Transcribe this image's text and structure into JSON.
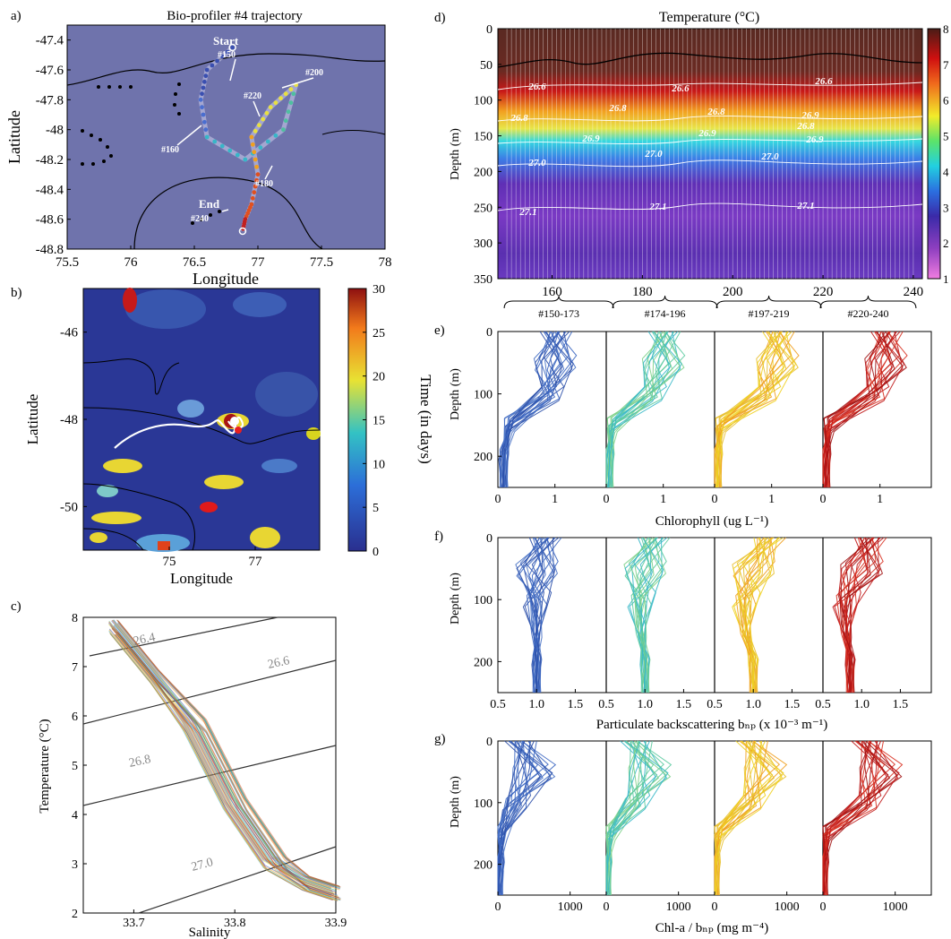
{
  "figure": {
    "panels": [
      {
        "id": "a",
        "letter": "a)",
        "title": "Bio-profiler #4 trajectory",
        "xlabel": "Longitude",
        "ylabel": "Latitude",
        "xticks": [
          "75.5",
          "76",
          "76.5",
          "77",
          "77.5",
          "78"
        ],
        "yticks": [
          "-47.4",
          "-47.6",
          "-47.8",
          "-48",
          "-48.2",
          "-48.4",
          "-48.6",
          "-48.8"
        ],
        "annotations": [
          "Start",
          "#150",
          "#200",
          "#220",
          "#160",
          "#180",
          "End",
          "#240"
        ]
      },
      {
        "id": "b",
        "letter": "b)",
        "xlabel": "Longitude",
        "ylabel": "Latitude",
        "xticks": [
          "75",
          "77"
        ],
        "yticks": [
          "-46",
          "-48",
          "-50"
        ],
        "colorbar_label": "Time (in days)",
        "colorbar_ticks": [
          "0",
          "5",
          "10",
          "15",
          "20",
          "25",
          "30"
        ]
      },
      {
        "id": "c",
        "letter": "c)",
        "xlabel": "Salinity",
        "ylabel": "Temperature (°C)",
        "xticks": [
          "33.7",
          "33.8",
          "33.9"
        ],
        "yticks": [
          "2",
          "3",
          "4",
          "5",
          "6",
          "7",
          "8"
        ],
        "isopycnal_labels": [
          "26.4",
          "26.6",
          "26.8",
          "27.0"
        ]
      },
      {
        "id": "d",
        "letter": "d)",
        "title": "Temperature (°C)",
        "ylabel": "Depth (m)",
        "xticks": [
          "160",
          "180",
          "200",
          "220",
          "240"
        ],
        "yticks": [
          "0",
          "50",
          "100",
          "150",
          "200",
          "250",
          "300",
          "350"
        ],
        "colorbar_ticks": [
          "1",
          "2",
          "3",
          "4",
          "5",
          "6",
          "7",
          "8"
        ],
        "contour_labels": [
          "26.6",
          "26.6",
          "26.6",
          "26.8",
          "26.8",
          "26.8",
          "26.8",
          "26.9",
          "26.9",
          "26.9",
          "26.9",
          "27.0",
          "27.0",
          "27.0",
          "27.1",
          "27.1",
          "27.1"
        ],
        "group_labels": [
          "#150-173",
          "#174-196",
          "#197-219",
          "#220-240"
        ]
      },
      {
        "id": "e",
        "letter": "e)",
        "ylabel": "Depth (m)",
        "xlabel": "Chlorophyll (ug L⁻¹)",
        "xticks": [
          "0",
          "1"
        ],
        "yticks": [
          "0",
          "100",
          "200"
        ]
      },
      {
        "id": "f",
        "letter": "f)",
        "ylabel": "Depth (m)",
        "xlabel": "Particulate backscattering bₙₚ (x 10⁻³ m⁻¹)",
        "xticks": [
          "0.5",
          "1.0",
          "1.5"
        ],
        "yticks": [
          "0",
          "100",
          "200"
        ]
      },
      {
        "id": "g",
        "letter": "g)",
        "ylabel": "Depth (m)",
        "xlabel": "Chl-a / bₙₚ (mg m⁻⁴)",
        "xticks": [
          "0",
          "1000"
        ],
        "yticks": [
          "0",
          "100",
          "200"
        ]
      }
    ]
  },
  "chart_data": [
    {
      "panel": "a",
      "type": "scatter",
      "title": "Bio-profiler #4 trajectory",
      "xlabel": "Longitude",
      "ylabel": "Latitude",
      "xlim": [
        75.5,
        78
      ],
      "ylim": [
        -48.8,
        -47.3
      ],
      "series": [
        {
          "x": [
            76.8,
            76.6,
            76.55,
            76.6,
            76.9,
            77.2,
            77.3,
            77.1,
            76.95,
            77.0,
            76.95,
            76.9,
            76.88
          ],
          "y": [
            -47.45,
            -47.6,
            -47.8,
            -48.05,
            -48.2,
            -48.0,
            -47.7,
            -47.85,
            -48.05,
            -48.3,
            -48.5,
            -48.6,
            -48.68
          ]
        }
      ]
    },
    {
      "panel": "b",
      "type": "heatmap",
      "xlabel": "Longitude",
      "ylabel": "Latitude",
      "xlim": [
        73,
        78.5
      ],
      "ylim": [
        -51,
        -45
      ],
      "colorbar": {
        "label": "Time (in days)",
        "range": [
          0,
          30
        ]
      }
    },
    {
      "panel": "c",
      "type": "line",
      "xlabel": "Salinity",
      "ylabel": "Temperature (°C)",
      "xlim": [
        33.65,
        33.9
      ],
      "ylim": [
        2,
        8
      ],
      "series": [
        {
          "x": [
            33.68,
            33.72,
            33.76,
            33.8,
            33.84,
            33.87,
            33.9
          ],
          "y": [
            7.8,
            6.8,
            5.8,
            4.2,
            3.0,
            2.6,
            2.4
          ]
        }
      ]
    },
    {
      "panel": "d",
      "type": "heatmap",
      "title": "Temperature (°C)",
      "ylabel": "Depth (m)",
      "xlim": [
        148,
        242
      ],
      "ylim": [
        350,
        0
      ],
      "colorbar": {
        "range": [
          1,
          8
        ]
      }
    },
    {
      "panel": "e",
      "type": "line",
      "xlabel": "Chlorophyll (ug L⁻¹)",
      "ylabel": "Depth (m)",
      "xlim": [
        0,
        1.9
      ],
      "ylim": [
        250,
        0
      ],
      "series": [
        {
          "name": "#150-173",
          "x": [
            1.0,
            1.0,
            0.9,
            0.2,
            0.1,
            0.1
          ],
          "y": [
            0,
            50,
            100,
            150,
            200,
            250
          ]
        },
        {
          "name": "#174-196",
          "x": [
            1.0,
            1.0,
            0.8,
            0.1,
            0.05,
            0.05
          ],
          "y": [
            0,
            50,
            100,
            150,
            200,
            250
          ]
        },
        {
          "name": "#197-219",
          "x": [
            1.1,
            1.1,
            0.9,
            0.1,
            0.05,
            0.05
          ],
          "y": [
            0,
            50,
            100,
            150,
            200,
            250
          ]
        },
        {
          "name": "#220-240",
          "x": [
            1.1,
            1.1,
            0.9,
            0.1,
            0.05,
            0.05
          ],
          "y": [
            0,
            50,
            100,
            150,
            200,
            250
          ]
        }
      ]
    },
    {
      "panel": "f",
      "type": "line",
      "xlabel": "Particulate backscattering",
      "ylabel": "Depth (m)",
      "xlim": [
        0.5,
        1.9
      ],
      "ylim": [
        250,
        0
      ],
      "series": [
        {
          "name": "#150-173",
          "x": [
            1.1,
            1.0,
            1.0,
            1.0,
            1.0,
            1.0
          ],
          "y": [
            0,
            50,
            100,
            150,
            200,
            250
          ]
        },
        {
          "name": "#174-196",
          "x": [
            1.1,
            1.0,
            0.95,
            0.95,
            1.0,
            1.0
          ],
          "y": [
            0,
            50,
            100,
            150,
            200,
            250
          ]
        },
        {
          "name": "#197-219",
          "x": [
            1.2,
            1.0,
            0.9,
            0.9,
            1.0,
            1.0
          ],
          "y": [
            0,
            50,
            100,
            150,
            200,
            250
          ]
        },
        {
          "name": "#220-240",
          "x": [
            1.1,
            1.0,
            0.8,
            0.8,
            0.85,
            0.85
          ],
          "y": [
            0,
            50,
            100,
            150,
            200,
            250
          ]
        }
      ]
    },
    {
      "panel": "g",
      "type": "line",
      "xlabel": "Chl-a / bbp",
      "ylabel": "Depth (m)",
      "xlim": [
        0,
        1500
      ],
      "ylim": [
        250,
        0
      ],
      "series": [
        {
          "name": "#150-173",
          "x": [
            300,
            500,
            250,
            50,
            20,
            10
          ],
          "y": [
            0,
            50,
            100,
            150,
            200,
            250
          ]
        },
        {
          "name": "#174-196",
          "x": [
            400,
            600,
            400,
            50,
            10,
            10
          ],
          "y": [
            0,
            50,
            100,
            150,
            200,
            250
          ]
        },
        {
          "name": "#197-219",
          "x": [
            500,
            700,
            500,
            50,
            10,
            10
          ],
          "y": [
            0,
            50,
            100,
            150,
            200,
            250
          ]
        },
        {
          "name": "#220-240",
          "x": [
            600,
            800,
            600,
            50,
            10,
            10
          ],
          "y": [
            0,
            50,
            100,
            150,
            200,
            250
          ]
        }
      ]
    }
  ]
}
